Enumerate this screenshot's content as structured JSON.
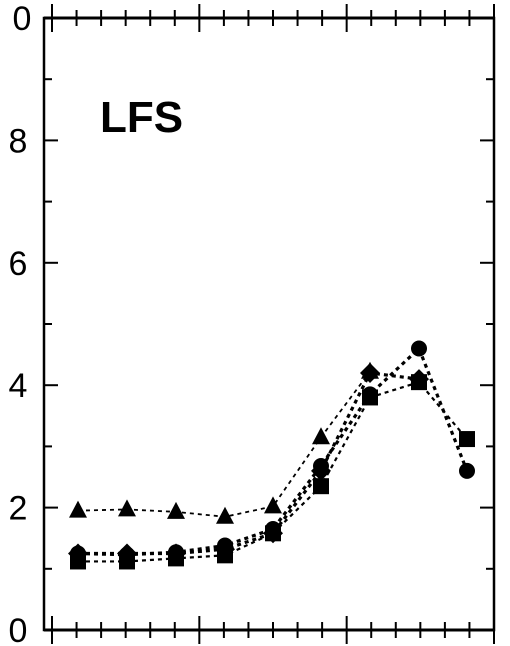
{
  "chart_data": {
    "type": "line",
    "panel_label": "LFS",
    "title": "",
    "xlabel": "",
    "ylabel": "",
    "ylim": [
      0,
      10
    ],
    "y_ticks": [
      0,
      2,
      4,
      6,
      8
    ],
    "y_tick_labels": [
      "0",
      "2",
      "4",
      "6",
      "8"
    ],
    "top_edge_label": "0",
    "grid": false,
    "legend": "none",
    "x": [
      1,
      2,
      3,
      4,
      5,
      6,
      7,
      8,
      9
    ],
    "series": [
      {
        "marker": "triangle",
        "values": [
          1.95,
          1.97,
          1.93,
          1.85,
          2.02,
          3.15,
          4.22,
          null,
          null
        ]
      },
      {
        "marker": "circle",
        "values": [
          1.25,
          1.23,
          1.27,
          1.38,
          1.65,
          2.68,
          3.85,
          4.6,
          2.6
        ]
      },
      {
        "marker": "diamond",
        "values": [
          1.25,
          1.25,
          1.25,
          1.32,
          1.58,
          2.6,
          4.2,
          4.1,
          null
        ]
      },
      {
        "marker": "square",
        "values": [
          1.12,
          1.12,
          1.17,
          1.22,
          1.58,
          2.35,
          3.8,
          4.05,
          3.12
        ]
      }
    ]
  }
}
